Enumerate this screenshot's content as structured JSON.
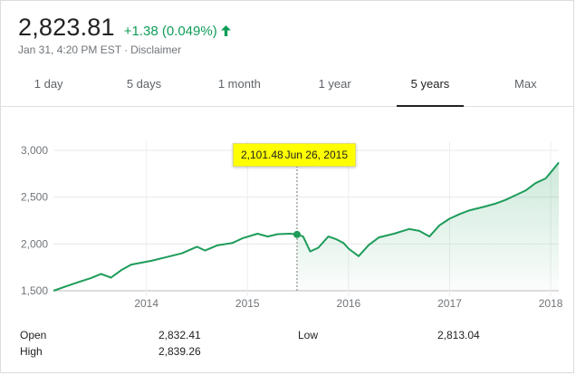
{
  "quote": {
    "price": "2,823.81",
    "change": "+1.38 (0.049%)",
    "timestamp": "Jan 31, 4:20 PM EST",
    "separator": "·",
    "disclaimer": "Disclaimer",
    "up_color": "#0f9d58"
  },
  "tabs": [
    {
      "label": "1 day"
    },
    {
      "label": "5 days"
    },
    {
      "label": "1 month"
    },
    {
      "label": "1 year"
    },
    {
      "label": "5 years",
      "active": true
    },
    {
      "label": "Max"
    }
  ],
  "tooltip": {
    "value": "2,101.48",
    "date": "Jun 26, 2015"
  },
  "stats": {
    "open_label": "Open",
    "open_value": "2,832.41",
    "high_label": "High",
    "high_value": "2,839.26",
    "low_label": "Low",
    "low_value": "2,813.04"
  },
  "chart_data": {
    "type": "area",
    "title": "",
    "xlabel": "",
    "ylabel": "",
    "ylim": [
      1500,
      3000
    ],
    "y_ticks": [
      1500,
      2000,
      2500,
      3000
    ],
    "y_tick_labels": [
      "1,500",
      "2,000",
      "2,500",
      "3,000"
    ],
    "x_ticks": [
      2014,
      2015,
      2016,
      2017,
      2018
    ],
    "x_tick_labels": [
      "2014",
      "2015",
      "2016",
      "2017",
      "2018"
    ],
    "xlim": [
      2013.08,
      2018.08
    ],
    "grid": true,
    "color": "#1e9c5a",
    "highlight_x": 2015.49,
    "x": [
      2013.08,
      2013.2,
      2013.32,
      2013.45,
      2013.55,
      2013.65,
      2013.75,
      2013.85,
      2013.95,
      2014.05,
      2014.2,
      2014.35,
      2014.5,
      2014.58,
      2014.7,
      2014.85,
      2014.95,
      2015.1,
      2015.2,
      2015.3,
      2015.42,
      2015.49,
      2015.55,
      2015.62,
      2015.7,
      2015.8,
      2015.88,
      2015.95,
      2016.0,
      2016.1,
      2016.2,
      2016.3,
      2016.45,
      2016.6,
      2016.7,
      2016.8,
      2016.85,
      2016.9,
      2017.0,
      2017.1,
      2017.2,
      2017.35,
      2017.45,
      2017.55,
      2017.65,
      2017.75,
      2017.85,
      2017.95,
      2018.02,
      2018.08
    ],
    "values": [
      1500,
      1545,
      1590,
      1635,
      1680,
      1640,
      1720,
      1780,
      1800,
      1820,
      1860,
      1900,
      1970,
      1930,
      1985,
      2010,
      2060,
      2110,
      2080,
      2105,
      2110,
      2101.48,
      2080,
      1920,
      1960,
      2080,
      2050,
      2010,
      1950,
      1870,
      1990,
      2070,
      2110,
      2160,
      2140,
      2080,
      2140,
      2200,
      2270,
      2320,
      2360,
      2400,
      2430,
      2470,
      2520,
      2570,
      2650,
      2700,
      2790,
      2870
    ]
  }
}
